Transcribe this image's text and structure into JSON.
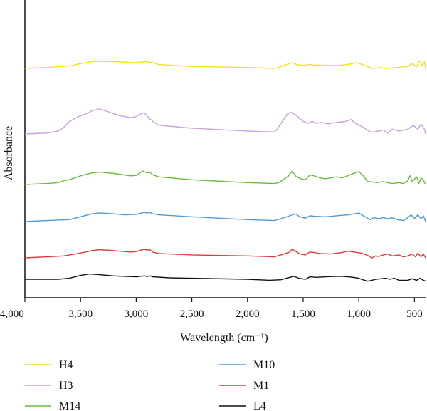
{
  "chart_data": {
    "type": "line",
    "xlabel": "Wavelength (cm⁻¹)",
    "ylabel": "Absorbance",
    "xlim": [
      4000,
      400
    ],
    "x_reversed": true,
    "grid": false,
    "legend_placement": "bottom",
    "x_ticks": [
      {
        "value": 4000,
        "label": "4,000"
      },
      {
        "value": 3500,
        "label": "3,500"
      },
      {
        "value": 3000,
        "label": "3,000"
      },
      {
        "value": 2500,
        "label": "2,500"
      },
      {
        "value": 2000,
        "label": "2,000"
      },
      {
        "value": 1500,
        "label": "1,500"
      },
      {
        "value": 1000,
        "label": "1,000"
      },
      {
        "value": 500,
        "label": "500"
      }
    ],
    "ylim": [
      0,
      100
    ],
    "series": [
      {
        "name": "H4",
        "color": "#f2e21a",
        "points": [
          [
            4000,
            78
          ],
          [
            3800,
            79
          ],
          [
            3600,
            80.5
          ],
          [
            3500,
            83
          ],
          [
            3400,
            85
          ],
          [
            3300,
            85.5
          ],
          [
            3200,
            85
          ],
          [
            3100,
            84.5
          ],
          [
            3000,
            84
          ],
          [
            2920,
            85
          ],
          [
            2850,
            84
          ],
          [
            2800,
            82
          ],
          [
            2500,
            80
          ],
          [
            2000,
            79
          ],
          [
            1760,
            78
          ],
          [
            1720,
            79
          ],
          [
            1650,
            82
          ],
          [
            1600,
            84
          ],
          [
            1560,
            82
          ],
          [
            1500,
            81
          ],
          [
            1450,
            82
          ],
          [
            1400,
            81.5
          ],
          [
            1200,
            81
          ],
          [
            1100,
            82
          ],
          [
            1020,
            84
          ],
          [
            960,
            81.5
          ],
          [
            880,
            78
          ],
          [
            800,
            79
          ],
          [
            760,
            78
          ],
          [
            700,
            78.5
          ],
          [
            560,
            80
          ],
          [
            520,
            83
          ],
          [
            480,
            80
          ],
          [
            460,
            86
          ],
          [
            430,
            81
          ],
          [
            410,
            85
          ],
          [
            400,
            78
          ]
        ]
      },
      {
        "name": "H3",
        "color": "#c9a2d6",
        "points": [
          [
            4000,
            55
          ],
          [
            3800,
            56
          ],
          [
            3700,
            58
          ],
          [
            3650,
            62
          ],
          [
            3600,
            68
          ],
          [
            3520,
            73
          ],
          [
            3450,
            76
          ],
          [
            3400,
            79
          ],
          [
            3330,
            81
          ],
          [
            3250,
            78
          ],
          [
            3150,
            74
          ],
          [
            3050,
            72
          ],
          [
            3000,
            73
          ],
          [
            2940,
            77
          ],
          [
            2920,
            76
          ],
          [
            2880,
            71
          ],
          [
            2850,
            68
          ],
          [
            2800,
            64
          ],
          [
            2500,
            61
          ],
          [
            2000,
            58
          ],
          [
            1760,
            57
          ],
          [
            1740,
            59
          ],
          [
            1700,
            66
          ],
          [
            1640,
            76
          ],
          [
            1600,
            77.5
          ],
          [
            1560,
            74
          ],
          [
            1500,
            68
          ],
          [
            1450,
            66
          ],
          [
            1420,
            68
          ],
          [
            1380,
            66
          ],
          [
            1330,
            67
          ],
          [
            1280,
            65.5
          ],
          [
            1200,
            67
          ],
          [
            1120,
            68
          ],
          [
            1070,
            70
          ],
          [
            1030,
            66
          ],
          [
            960,
            62
          ],
          [
            900,
            57
          ],
          [
            860,
            57
          ],
          [
            830,
            58
          ],
          [
            780,
            59
          ],
          [
            740,
            56
          ],
          [
            700,
            60
          ],
          [
            640,
            58
          ],
          [
            560,
            60
          ],
          [
            510,
            64
          ],
          [
            470,
            60
          ],
          [
            440,
            65
          ],
          [
            410,
            60
          ],
          [
            400,
            55
          ]
        ]
      },
      {
        "name": "M14",
        "color": "#6abb3a",
        "points": [
          [
            4000,
            36
          ],
          [
            3800,
            37
          ],
          [
            3700,
            38
          ],
          [
            3650,
            40
          ],
          [
            3600,
            41
          ],
          [
            3500,
            45
          ],
          [
            3400,
            48
          ],
          [
            3330,
            49
          ],
          [
            3200,
            47.5
          ],
          [
            3050,
            45
          ],
          [
            3000,
            45.5
          ],
          [
            2940,
            50
          ],
          [
            2900,
            48
          ],
          [
            2880,
            49
          ],
          [
            2850,
            46
          ],
          [
            2800,
            44
          ],
          [
            2500,
            41
          ],
          [
            2000,
            38
          ],
          [
            1760,
            37
          ],
          [
            1720,
            38
          ],
          [
            1680,
            41
          ],
          [
            1630,
            45
          ],
          [
            1600,
            50
          ],
          [
            1560,
            44
          ],
          [
            1520,
            42
          ],
          [
            1480,
            41
          ],
          [
            1440,
            46
          ],
          [
            1400,
            45
          ],
          [
            1350,
            43
          ],
          [
            1300,
            42
          ],
          [
            1250,
            43
          ],
          [
            1200,
            44
          ],
          [
            1150,
            43
          ],
          [
            1100,
            45
          ],
          [
            1040,
            48
          ],
          [
            1000,
            49.5
          ],
          [
            960,
            45
          ],
          [
            920,
            39
          ],
          [
            890,
            39
          ],
          [
            840,
            38
          ],
          [
            780,
            39
          ],
          [
            740,
            38
          ],
          [
            700,
            37
          ],
          [
            640,
            38
          ],
          [
            600,
            37
          ],
          [
            560,
            40
          ],
          [
            540,
            45
          ],
          [
            520,
            39
          ],
          [
            480,
            44
          ],
          [
            460,
            37
          ],
          [
            440,
            43
          ],
          [
            420,
            41
          ],
          [
            400,
            36
          ]
        ]
      },
      {
        "name": "M10",
        "color": "#4f9ad2",
        "points": [
          [
            4000,
            22
          ],
          [
            3800,
            23
          ],
          [
            3600,
            24
          ],
          [
            3500,
            27
          ],
          [
            3400,
            30
          ],
          [
            3330,
            31
          ],
          [
            3200,
            30
          ],
          [
            3100,
            29
          ],
          [
            3000,
            29.5
          ],
          [
            2930,
            31.5
          ],
          [
            2900,
            31
          ],
          [
            2880,
            31.5
          ],
          [
            2850,
            30
          ],
          [
            2800,
            29
          ],
          [
            2500,
            27
          ],
          [
            2000,
            24
          ],
          [
            1760,
            23
          ],
          [
            1700,
            25
          ],
          [
            1620,
            28
          ],
          [
            1570,
            30
          ],
          [
            1530,
            27
          ],
          [
            1480,
            25.5
          ],
          [
            1440,
            28
          ],
          [
            1400,
            27.5
          ],
          [
            1300,
            27
          ],
          [
            1200,
            28
          ],
          [
            1100,
            29
          ],
          [
            1040,
            30
          ],
          [
            1000,
            31
          ],
          [
            960,
            28
          ],
          [
            900,
            24
          ],
          [
            860,
            26
          ],
          [
            820,
            25
          ],
          [
            780,
            26
          ],
          [
            740,
            25
          ],
          [
            700,
            26
          ],
          [
            650,
            24
          ],
          [
            600,
            23
          ],
          [
            560,
            26
          ],
          [
            530,
            29
          ],
          [
            500,
            25
          ],
          [
            470,
            29
          ],
          [
            440,
            25
          ],
          [
            420,
            28
          ],
          [
            400,
            22
          ]
        ]
      },
      {
        "name": "M1",
        "color": "#dd3a3a",
        "points": [
          [
            4000,
            9
          ],
          [
            3800,
            10
          ],
          [
            3650,
            11
          ],
          [
            3500,
            14
          ],
          [
            3400,
            16.5
          ],
          [
            3330,
            17.5
          ],
          [
            3200,
            16.5
          ],
          [
            3050,
            15
          ],
          [
            3000,
            15.5
          ],
          [
            2930,
            18
          ],
          [
            2900,
            17
          ],
          [
            2880,
            17.5
          ],
          [
            2850,
            15
          ],
          [
            2800,
            13.5
          ],
          [
            2500,
            12
          ],
          [
            2000,
            11
          ],
          [
            1760,
            10
          ],
          [
            1700,
            12
          ],
          [
            1620,
            15
          ],
          [
            1600,
            18
          ],
          [
            1570,
            16
          ],
          [
            1530,
            13
          ],
          [
            1480,
            12
          ],
          [
            1440,
            15
          ],
          [
            1400,
            14.5
          ],
          [
            1350,
            13.5
          ],
          [
            1250,
            13
          ],
          [
            1150,
            14.5
          ],
          [
            1100,
            16
          ],
          [
            1040,
            15
          ],
          [
            980,
            14
          ],
          [
            920,
            11.5
          ],
          [
            880,
            9
          ],
          [
            850,
            11
          ],
          [
            820,
            10.5
          ],
          [
            780,
            12
          ],
          [
            740,
            13
          ],
          [
            700,
            11
          ],
          [
            640,
            12
          ],
          [
            600,
            10
          ],
          [
            560,
            11
          ],
          [
            520,
            13
          ],
          [
            490,
            10
          ],
          [
            470,
            14
          ],
          [
            440,
            10
          ],
          [
            420,
            13
          ],
          [
            400,
            9
          ]
        ]
      },
      {
        "name": "L4",
        "color": "#111111",
        "points": [
          [
            4000,
            0
          ],
          [
            3700,
            0
          ],
          [
            3600,
            1
          ],
          [
            3500,
            4
          ],
          [
            3420,
            5.5
          ],
          [
            3350,
            5
          ],
          [
            3200,
            3.5
          ],
          [
            3000,
            2.5
          ],
          [
            2930,
            3.5
          ],
          [
            2900,
            3
          ],
          [
            2870,
            3.5
          ],
          [
            2850,
            2.5
          ],
          [
            2700,
            1.5
          ],
          [
            2500,
            1
          ],
          [
            2000,
            0
          ],
          [
            1800,
            -1
          ],
          [
            1700,
            -0.5
          ],
          [
            1620,
            2
          ],
          [
            1580,
            3
          ],
          [
            1540,
            1
          ],
          [
            1480,
            0
          ],
          [
            1440,
            2.5
          ],
          [
            1380,
            2
          ],
          [
            1300,
            2.5
          ],
          [
            1200,
            3
          ],
          [
            1150,
            3
          ],
          [
            1100,
            2.5
          ],
          [
            1050,
            2
          ],
          [
            1000,
            1
          ],
          [
            950,
            -1
          ],
          [
            920,
            -2
          ],
          [
            880,
            -1
          ],
          [
            850,
            0
          ],
          [
            800,
            0.5
          ],
          [
            760,
            1
          ],
          [
            720,
            0
          ],
          [
            680,
            1
          ],
          [
            640,
            -1
          ],
          [
            560,
            -1
          ],
          [
            520,
            0.5
          ],
          [
            480,
            -1
          ],
          [
            450,
            1
          ],
          [
            420,
            -1
          ],
          [
            400,
            -2
          ]
        ]
      }
    ]
  }
}
